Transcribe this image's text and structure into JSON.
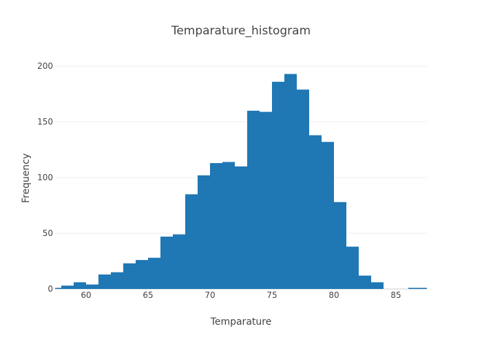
{
  "chart_data": {
    "type": "bar",
    "title": "Temparature_histogram",
    "xlabel": "Temparature",
    "ylabel": "Frequency",
    "bin_width": 1,
    "bins_start": [
      57,
      58,
      59,
      60,
      61,
      62,
      63,
      64,
      65,
      66,
      67,
      68,
      69,
      70,
      71,
      72,
      73,
      74,
      75,
      76,
      77,
      78,
      79,
      80,
      81,
      82,
      83,
      84,
      85,
      86,
      87
    ],
    "values": [
      1,
      3,
      6,
      4,
      13,
      15,
      23,
      26,
      28,
      47,
      49,
      85,
      102,
      113,
      114,
      110,
      160,
      159,
      186,
      193,
      179,
      138,
      132,
      78,
      38,
      12,
      6,
      0,
      0,
      1,
      1
    ],
    "xlim": [
      57.5,
      87.5
    ],
    "ylim": [
      0,
      210
    ],
    "x_ticks": [
      60,
      65,
      70,
      75,
      80,
      85
    ],
    "y_ticks": [
      0,
      50,
      100,
      150,
      200
    ],
    "grid": true,
    "bar_color": "#1f77b4"
  }
}
